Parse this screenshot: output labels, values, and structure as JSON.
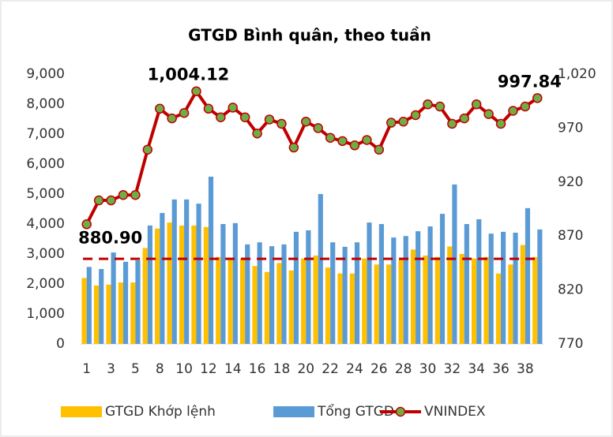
{
  "chart_data": {
    "type": "bar_line",
    "title": "GTGD Bình quân, theo tuần",
    "categories": [
      "1",
      null,
      "3",
      null,
      "5",
      null,
      "8",
      null,
      "10",
      null,
      "12",
      null,
      "14",
      null,
      "16",
      null,
      "18",
      null,
      "20",
      null,
      "22",
      null,
      "24",
      null,
      "26",
      null,
      "28",
      null,
      "30",
      null,
      "32",
      null,
      "34",
      null,
      "36",
      null,
      "38",
      null
    ],
    "series": [
      {
        "name": "GTGD Khớp lệnh",
        "color": "#FFC000",
        "kind": "bar",
        "values": [
          2200,
          1950,
          1980,
          2050,
          2050,
          3200,
          3850,
          4050,
          3950,
          3950,
          3900,
          2900,
          2800,
          2850,
          2600,
          2400,
          2700,
          2450,
          2850,
          2950,
          2550,
          2350,
          2350,
          2850,
          2650,
          2650,
          2800,
          3150,
          2950,
          2900,
          3250,
          3000,
          2850,
          2900,
          2350,
          2650,
          3300,
          2900
        ]
      },
      {
        "name": "Tổng GTGD",
        "color": "#5B9BD5",
        "kind": "bar",
        "values": [
          2570,
          2500,
          3050,
          2740,
          2790,
          3950,
          4370,
          4820,
          4820,
          4680,
          5580,
          4000,
          4030,
          3320,
          3390,
          3260,
          3320,
          3740,
          3790,
          5000,
          3390,
          3240,
          3390,
          4050,
          4000,
          3550,
          3600,
          3760,
          3920,
          4340,
          5320,
          4000,
          4160,
          3680,
          3740,
          3710,
          4530,
          3820
        ]
      },
      {
        "name": "VNINDEX",
        "color": "#C00000",
        "marker_color": "#70AD47",
        "kind": "line",
        "axis": "y2",
        "values": [
          880.9,
          903,
          903,
          908,
          908,
          950,
          988,
          979,
          984,
          1004.12,
          988,
          980,
          989,
          980,
          965,
          978,
          974,
          952,
          976,
          970,
          961,
          958,
          954,
          959,
          950,
          975,
          976,
          982,
          992,
          990,
          974,
          979,
          992,
          983,
          974,
          986,
          990,
          997.84
        ],
        "value_labels": [
          "880.90",
          null,
          null,
          null,
          null,
          null,
          null,
          null,
          null,
          "1,004.12",
          null,
          null,
          null,
          null,
          null,
          null,
          null,
          null,
          null,
          null,
          null,
          null,
          null,
          null,
          null,
          null,
          null,
          null,
          null,
          null,
          null,
          null,
          null,
          null,
          null,
          null,
          null,
          "997.84"
        ]
      }
    ],
    "reference_line": {
      "value": 2840,
      "color": "#C00000"
    },
    "ylim": [
      0,
      9000
    ],
    "yticks": [
      0,
      {
        "value": 1000,
        "label": "1,000"
      },
      {
        "value": 2000,
        "label": "2,000"
      },
      {
        "value": 3000,
        "label": "3,000"
      },
      {
        "value": 4000,
        "label": "4,000"
      },
      {
        "value": 5000,
        "label": "5,000"
      },
      {
        "value": 6000,
        "label": "6,000"
      },
      {
        "value": 7000,
        "label": "7,000"
      },
      {
        "value": 8000,
        "label": "8,000"
      },
      {
        "value": 9000,
        "label": "9,000"
      }
    ],
    "y2lim": [
      770,
      1020
    ],
    "y2ticks": [
      770,
      820,
      870,
      920,
      970,
      {
        "value": 1020,
        "label": "1,020"
      }
    ],
    "grid": false,
    "legend": "bottom"
  }
}
